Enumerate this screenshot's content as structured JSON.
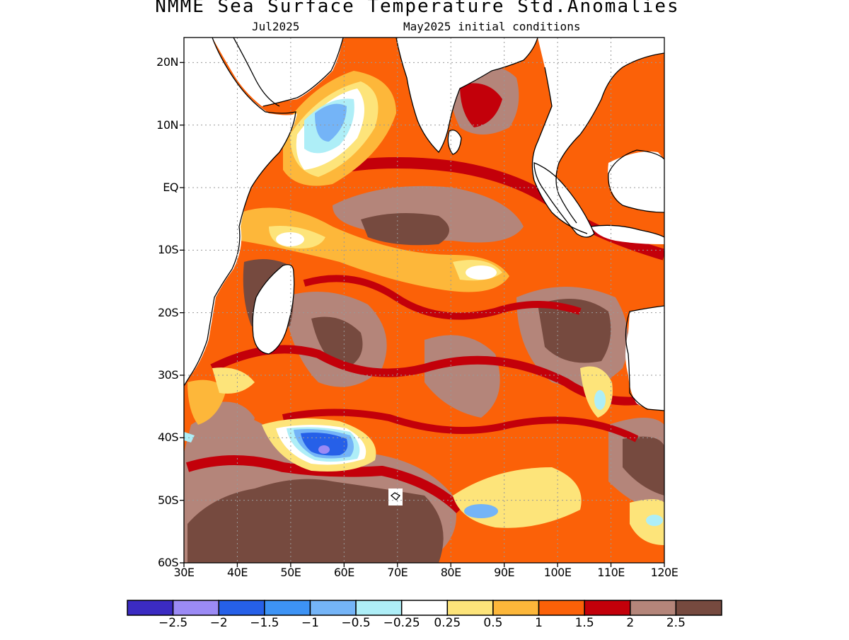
{
  "header": {
    "title": "NMME Sea Surface Temperature Std.Anomalies",
    "target_month": "Jul2025",
    "initial_conditions": "May2025 initial conditions"
  },
  "map": {
    "region": "Indian Ocean",
    "lon_range": [
      30,
      120
    ],
    "lat_range": [
      -60,
      24
    ],
    "lat_labels": [
      "20N",
      "10N",
      "EQ",
      "10S",
      "20S",
      "30S",
      "40S",
      "50S",
      "60S"
    ],
    "lat_values": [
      20,
      10,
      0,
      -10,
      -20,
      -30,
      -40,
      -50,
      -60
    ],
    "lon_labels": [
      "30E",
      "40E",
      "50E",
      "60E",
      "70E",
      "80E",
      "90E",
      "100E",
      "110E",
      "120E"
    ],
    "lon_values": [
      30,
      40,
      50,
      60,
      70,
      80,
      90,
      100,
      110,
      120
    ],
    "grid": "dotted"
  },
  "colorbar": {
    "colors": [
      "#3b2bc2",
      "#9b8af5",
      "#2660e8",
      "#3d93f5",
      "#74b4f7",
      "#aeeef7",
      "#ffffff",
      "#fde47a",
      "#fdb73a",
      "#fb6108",
      "#c3000a",
      "#b4857a",
      "#764a3f"
    ],
    "labels": [
      "−2.5",
      "−2",
      "−1.5",
      "−1",
      "−0.5",
      "−0.25",
      "0.25",
      "0.5",
      "1",
      "1.5",
      "2",
      "2.5"
    ]
  }
}
